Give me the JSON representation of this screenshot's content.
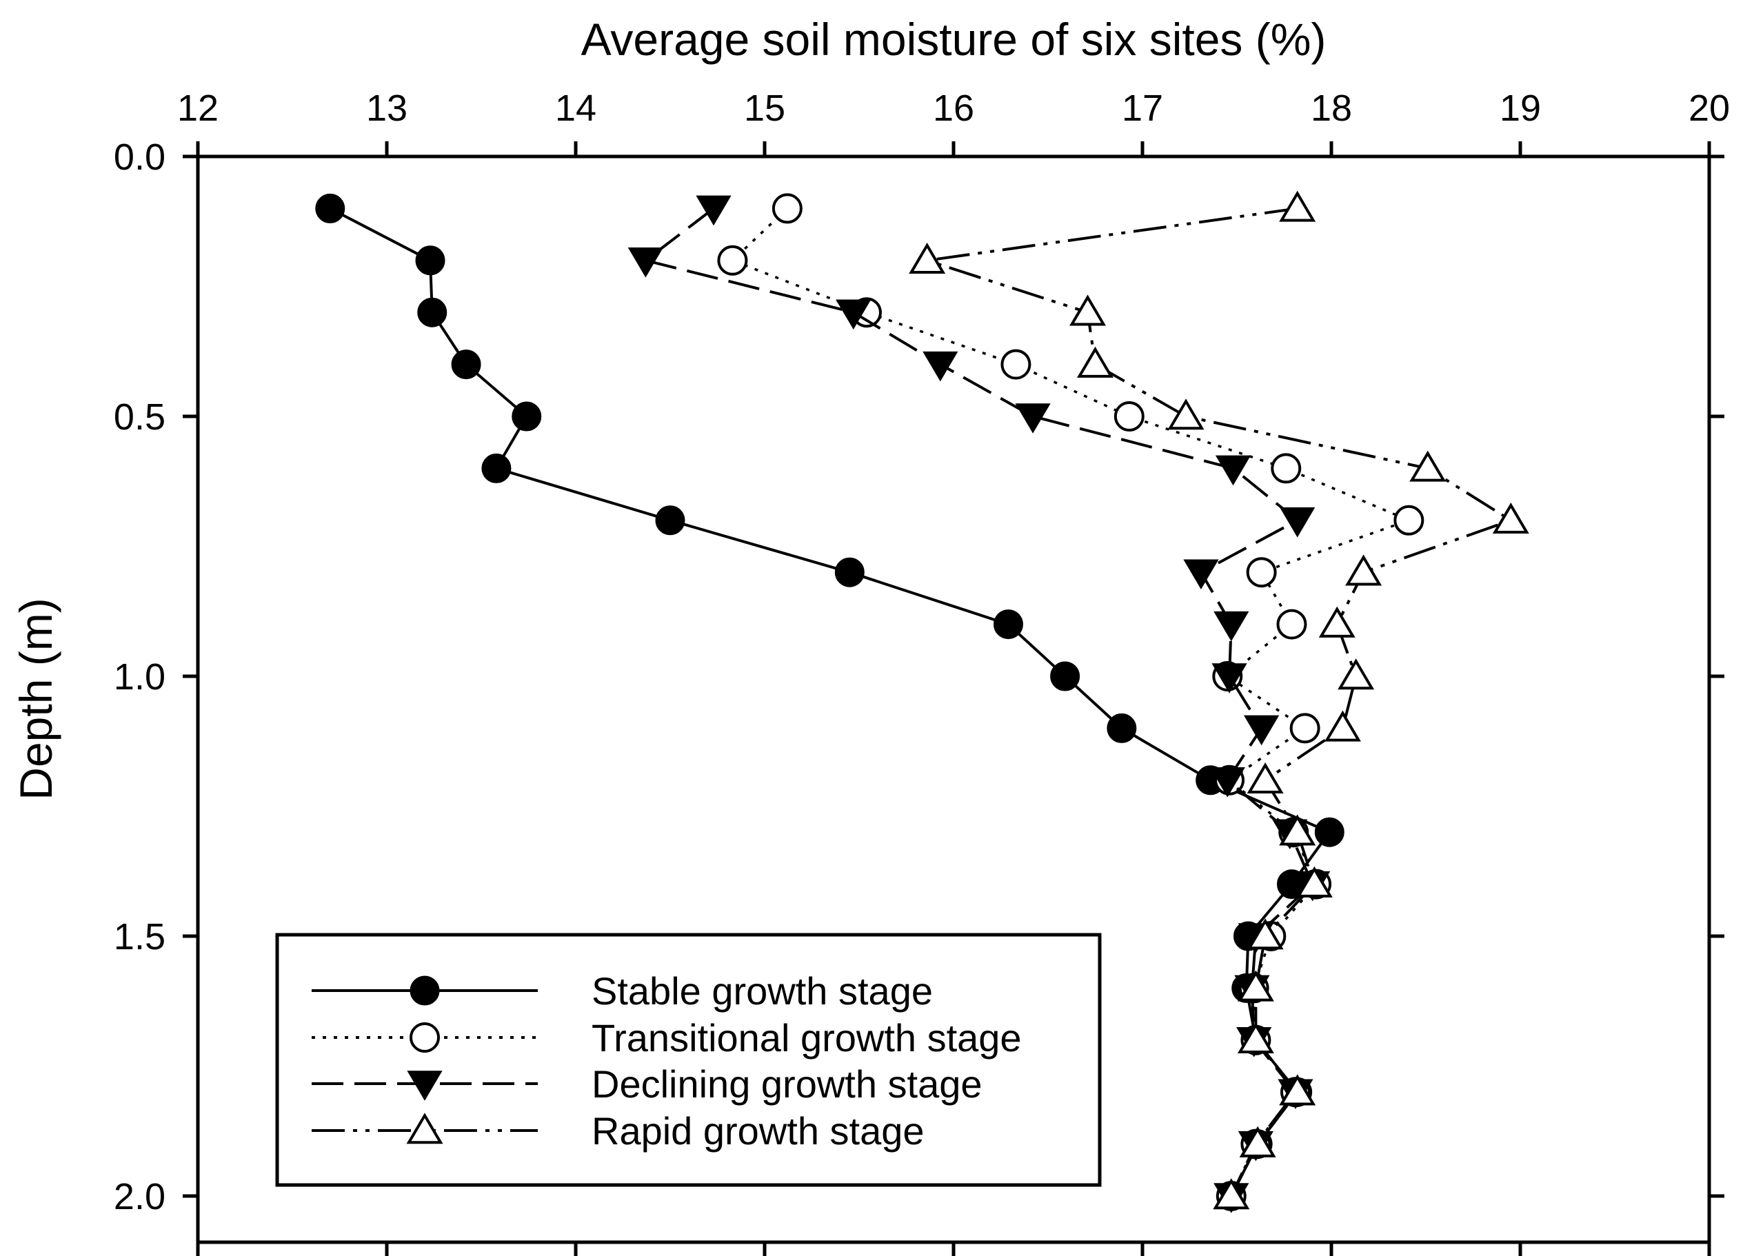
{
  "chart_data": {
    "type": "line",
    "title": "",
    "xlabel": "Average soil moisture of six sites (%)",
    "ylabel": "Depth (m)",
    "xlim": [
      12,
      20
    ],
    "ylim": [
      0,
      2.1
    ],
    "y_inverted": true,
    "x_axis_position": "top",
    "x_ticks": [
      "12",
      "13",
      "14",
      "15",
      "16",
      "17",
      "18",
      "19",
      "20"
    ],
    "y_ticks": [
      "0.0",
      "0.5",
      "1.0",
      "1.5",
      "2.0"
    ],
    "grid": false,
    "legend_position": "bottom-left",
    "series": [
      {
        "name": "Stable growth stage",
        "marker": "filled-circle",
        "line_style": "solid",
        "points": [
          [
            12.7,
            0.1
          ],
          [
            13.23,
            0.2
          ],
          [
            13.24,
            0.3
          ],
          [
            13.42,
            0.4
          ],
          [
            13.74,
            0.5
          ],
          [
            13.58,
            0.6
          ],
          [
            14.5,
            0.7
          ],
          [
            15.45,
            0.8
          ],
          [
            16.29,
            0.9
          ],
          [
            16.59,
            1.0
          ],
          [
            16.89,
            1.1
          ],
          [
            17.36,
            1.2
          ],
          [
            17.99,
            1.3
          ],
          [
            17.79,
            1.4
          ],
          [
            17.56,
            1.5
          ],
          [
            17.55,
            1.6
          ],
          [
            17.6,
            1.7
          ],
          [
            17.82,
            1.8
          ],
          [
            17.61,
            1.9
          ],
          [
            17.47,
            2.0
          ]
        ]
      },
      {
        "name": "Transitional growth stage",
        "marker": "open-circle",
        "line_style": "dotted",
        "points": [
          [
            15.12,
            0.1
          ],
          [
            14.83,
            0.2
          ],
          [
            15.54,
            0.3
          ],
          [
            16.33,
            0.4
          ],
          [
            16.93,
            0.5
          ],
          [
            17.76,
            0.6
          ],
          [
            18.41,
            0.7
          ],
          [
            17.63,
            0.8
          ],
          [
            17.79,
            0.9
          ],
          [
            17.45,
            1.0
          ],
          [
            17.86,
            1.1
          ],
          [
            17.46,
            1.2
          ],
          [
            17.8,
            1.3
          ],
          [
            17.92,
            1.4
          ],
          [
            17.68,
            1.5
          ],
          [
            17.59,
            1.6
          ],
          [
            17.6,
            1.7
          ],
          [
            17.81,
            1.8
          ],
          [
            17.6,
            1.9
          ],
          [
            17.47,
            2.0
          ]
        ]
      },
      {
        "name": "Declining growth stage",
        "marker": "filled-triangle-down",
        "line_style": "dashed",
        "points": [
          [
            14.73,
            0.1
          ],
          [
            14.37,
            0.2
          ],
          [
            15.47,
            0.3
          ],
          [
            15.93,
            0.4
          ],
          [
            16.42,
            0.5
          ],
          [
            17.48,
            0.6
          ],
          [
            17.82,
            0.7
          ],
          [
            17.31,
            0.8
          ],
          [
            17.47,
            0.9
          ],
          [
            17.46,
            1.0
          ],
          [
            17.63,
            1.1
          ],
          [
            17.45,
            1.2
          ],
          [
            17.78,
            1.3
          ],
          [
            17.9,
            1.4
          ],
          [
            17.6,
            1.5
          ],
          [
            17.58,
            1.6
          ],
          [
            17.59,
            1.7
          ],
          [
            17.81,
            1.8
          ],
          [
            17.6,
            1.9
          ],
          [
            17.47,
            2.0
          ]
        ]
      },
      {
        "name": "Rapid growth stage",
        "marker": "open-triangle-up",
        "line_style": "dash-dot-dot",
        "points": [
          [
            17.82,
            0.1
          ],
          [
            15.86,
            0.2
          ],
          [
            16.71,
            0.3
          ],
          [
            16.75,
            0.4
          ],
          [
            17.23,
            0.5
          ],
          [
            18.51,
            0.6
          ],
          [
            18.95,
            0.7
          ],
          [
            18.17,
            0.8
          ],
          [
            18.03,
            0.9
          ],
          [
            18.13,
            1.0
          ],
          [
            18.06,
            1.1
          ],
          [
            17.65,
            1.2
          ],
          [
            17.82,
            1.3
          ],
          [
            17.91,
            1.4
          ],
          [
            17.65,
            1.5
          ],
          [
            17.6,
            1.6
          ],
          [
            17.6,
            1.7
          ],
          [
            17.82,
            1.8
          ],
          [
            17.61,
            1.9
          ],
          [
            17.47,
            2.0
          ]
        ]
      }
    ]
  }
}
